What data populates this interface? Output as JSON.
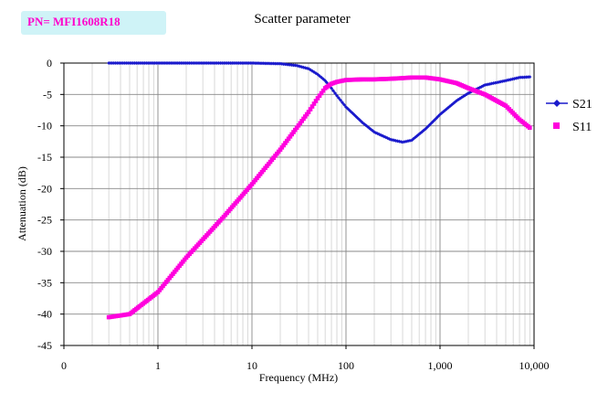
{
  "part_number": "PN= MFI1608R18",
  "chart_data": {
    "type": "line",
    "title": "Scatter parameter",
    "xlabel": "Frequency (MHz)",
    "ylabel": "Attenuation (dB)",
    "xscale": "log",
    "xlim": [
      0.1,
      10000
    ],
    "ylim": [
      -45,
      0
    ],
    "x_tick_labels": [
      "0",
      "1",
      "10",
      "100",
      "1,000",
      "10,000"
    ],
    "y_tick_labels": [
      "0",
      "-5",
      "-10",
      "-15",
      "-20",
      "-25",
      "-30",
      "-35",
      "-40",
      "-45"
    ],
    "grid": true,
    "legend_position": "right",
    "x": [
      0.3,
      0.5,
      1,
      2,
      5,
      10,
      20,
      30,
      40,
      50,
      60,
      70,
      80,
      100,
      150,
      200,
      300,
      400,
      500,
      700,
      1000,
      1500,
      2000,
      3000,
      5000,
      7000,
      9000
    ],
    "series": [
      {
        "name": "S21",
        "color": "#1a1acc",
        "marker": "diamond",
        "values": [
          0,
          0,
          0,
          0,
          0,
          0,
          -0.1,
          -0.4,
          -0.9,
          -1.8,
          -2.8,
          -4,
          -5.2,
          -7,
          -9.5,
          -11,
          -12.2,
          -12.6,
          -12.3,
          -10.5,
          -8.2,
          -6,
          -4.8,
          -3.5,
          -2.8,
          -2.3,
          -2.2
        ]
      },
      {
        "name": "S11",
        "color": "#ff00dd",
        "marker": "square",
        "values": [
          -40.5,
          -40,
          -36.5,
          -31,
          -24.5,
          -19.3,
          -13.8,
          -10.3,
          -7.8,
          -5.6,
          -4,
          -3.3,
          -3,
          -2.7,
          -2.6,
          -2.6,
          -2.5,
          -2.4,
          -2.3,
          -2.3,
          -2.6,
          -3.2,
          -4,
          -5,
          -6.8,
          -9,
          -10.3
        ]
      }
    ]
  }
}
